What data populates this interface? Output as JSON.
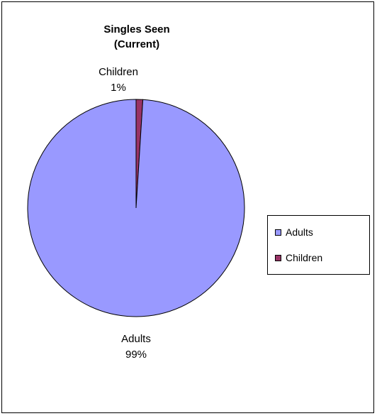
{
  "chart_data": {
    "type": "pie",
    "title_lines": [
      "Singles Seen",
      "(Current)"
    ],
    "categories": [
      "Adults",
      "Children"
    ],
    "values": [
      99,
      1
    ],
    "labels": [
      "99%",
      "1%"
    ],
    "colors": [
      "#9999ff",
      "#993366"
    ],
    "legend": {
      "placement": "right",
      "entries": [
        "Adults",
        "Children"
      ]
    }
  }
}
